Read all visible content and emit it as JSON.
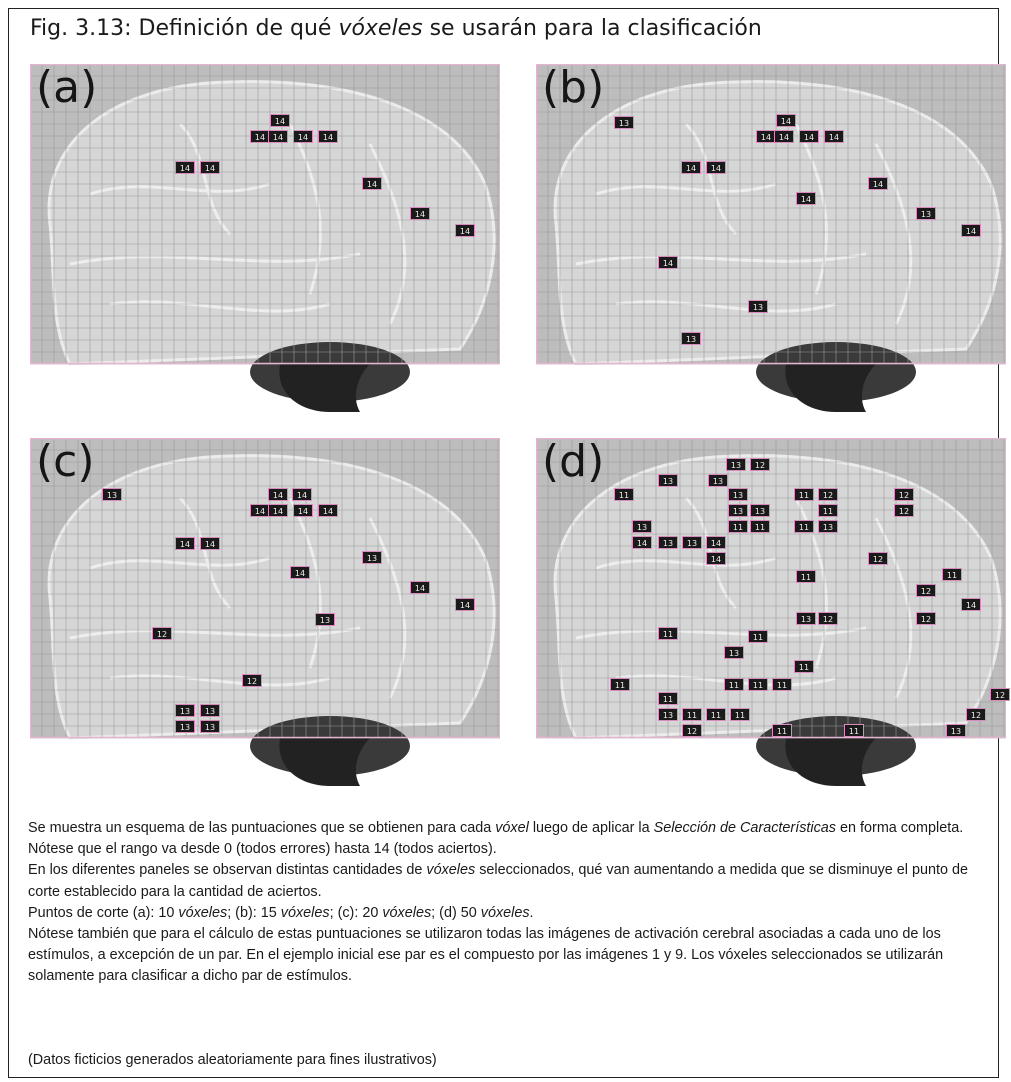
{
  "figure": {
    "title_prefix": "Fig. 3.13: Definición de qué ",
    "title_em": "vóxeles",
    "title_suffix": " se usarán para la clasificación"
  },
  "panels": [
    {
      "label": "(a)",
      "voxels": [
        "14",
        "14",
        "14",
        "14",
        "14",
        "14",
        "14",
        "14",
        "14",
        "14"
      ]
    },
    {
      "label": "(b)",
      "voxels": [
        "13",
        "14",
        "14",
        "14",
        "14",
        "14",
        "14",
        "14",
        "14",
        "14",
        "13",
        "14",
        "14",
        "13",
        "13"
      ]
    },
    {
      "label": "(c)",
      "voxels": [
        "13",
        "14",
        "14",
        "14",
        "14",
        "14",
        "14",
        "14",
        "14",
        "14",
        "13",
        "14",
        "14",
        "13",
        "12",
        "12",
        "13",
        "13",
        "13",
        "13"
      ]
    },
    {
      "label": "(d)",
      "voxels": [
        "13",
        "12",
        "13",
        "13",
        "11",
        "13",
        "11",
        "12",
        "12",
        "12",
        "13",
        "13",
        "11",
        "13",
        "11",
        "11",
        "11",
        "13",
        "14",
        "13",
        "13",
        "14",
        "14",
        "12",
        "11",
        "11",
        "12",
        "14",
        "13",
        "12",
        "12",
        "11",
        "11",
        "13",
        "11",
        "11",
        "11",
        "11",
        "11",
        "11",
        "13",
        "11",
        "11",
        "11",
        "12",
        "11",
        "11",
        "12",
        "12",
        "13"
      ]
    }
  ],
  "caption": {
    "p1_a": "Se muestra un esquema de las puntuaciones que se obtienen para cada ",
    "p1_em1": "vóxel",
    "p1_b": " luego de aplicar la ",
    "p1_em2": "Selección de Características",
    "p1_c": " en forma completa. Nótese que el rango va desde 0 (todos errores) hasta 14 (todos aciertos).",
    "p2_a": "En los diferentes paneles se observan distintas cantidades de ",
    "p2_em": "vóxeles",
    "p2_b": " seleccionados, qué van aumentando a medida que se disminuye el punto de corte establecido para la cantidad de aciertos.",
    "p3_a": "Puntos de corte (a): 10 ",
    "p3_em1": "vóxeles",
    "p3_b": "; (b): 15 ",
    "p3_em2": "vóxeles",
    "p3_c": "; (c): 20 ",
    "p3_em3": "vóxeles",
    "p3_d": "; (d) 50 ",
    "p3_em4": "vóxeles",
    "p3_e": ".",
    "p4": "Nótese también que para el cálculo de estas puntuaciones se utilizaron todas las imágenes de activación cerebral asociadas a cada uno de los estímulos, a excepción de un par. En el ejemplo inicial ese par es el compuesto por las imágenes 1 y 9. Los vóxeles seleccionados se utilizarán solamente para clasificar a dicho par de estímulos.",
    "note": "(Datos ficticios generados aleatoriamente para fines ilustrativos)"
  }
}
